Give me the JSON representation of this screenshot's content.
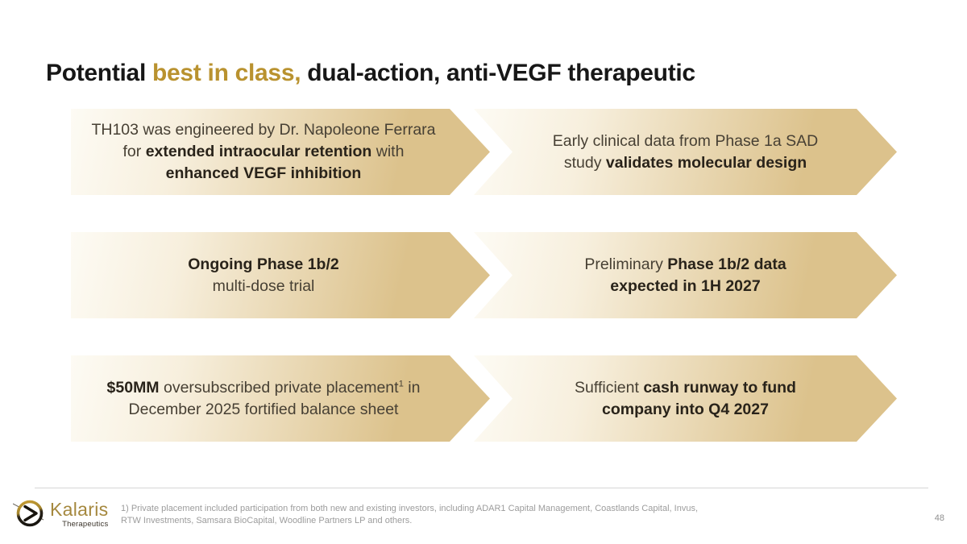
{
  "slide": {
    "title_segments": [
      {
        "t": "Potential "
      },
      {
        "t": "best in class,",
        "cls": "gold"
      },
      {
        "t": " dual-action, anti-VEGF therapeutic"
      }
    ],
    "rows": [
      {
        "left_segments": [
          {
            "t": "TH103 was engineered by Dr. Napoleone Ferrara"
          },
          {
            "br": true
          },
          {
            "t": "for "
          },
          {
            "t": "extended intraocular retention",
            "b": true
          },
          {
            "t": " with"
          },
          {
            "br": true
          },
          {
            "t": "enhanced VEGF inhibition",
            "b": true
          }
        ],
        "right_segments": [
          {
            "t": "Early clinical data from Phase 1a SAD"
          },
          {
            "br": true
          },
          {
            "t": "study "
          },
          {
            "t": "validates molecular design",
            "b": true
          }
        ]
      },
      {
        "left_segments": [
          {
            "t": "Ongoing Phase 1b/2",
            "b": true
          },
          {
            "br": true
          },
          {
            "t": "multi-dose trial"
          }
        ],
        "right_segments": [
          {
            "t": "Preliminary "
          },
          {
            "t": "Phase 1b/2 data",
            "b": true
          },
          {
            "br": true
          },
          {
            "t": "expected in 1H 2027",
            "b": true
          }
        ]
      },
      {
        "left_segments": [
          {
            "t": "$50MM",
            "b": true
          },
          {
            "t": " oversubscribed private placement"
          },
          {
            "t": "1",
            "sup": true
          },
          {
            "t": " in"
          },
          {
            "br": true
          },
          {
            "t": "December 2025 fortified balance sheet"
          }
        ],
        "right_segments": [
          {
            "t": "Sufficient "
          },
          {
            "t": "cash runway to fund",
            "b": true
          },
          {
            "br": true
          },
          {
            "t": "company into Q4 2027",
            "b": true
          }
        ]
      }
    ],
    "footer": {
      "logo_name": "Kalaris",
      "logo_tagline": "Therapeutics",
      "footnote_line1": "1) Private placement included participation from both new and existing investors, including ADAR1 Capital Management, Coastlands Capital, Invus,",
      "footnote_line2": "RTW Investments, Samsara BioCapital, Woodline Partners LP and others.",
      "page_number": "48"
    },
    "colors": {
      "accent_gold": "#B9922F",
      "arrow_gradient_start": "#FDFBF4",
      "arrow_gradient_end": "#DCC28C",
      "body_text": "#474034",
      "bold_text": "#29231A",
      "footnote_gray": "#9C9C9C"
    }
  }
}
